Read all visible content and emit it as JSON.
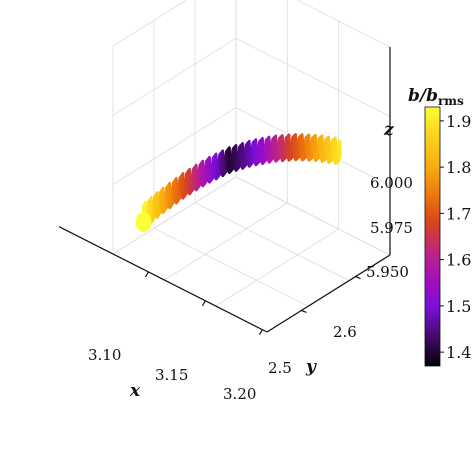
{
  "chart_data": {
    "type": "line",
    "projection": "3d",
    "title": "",
    "xlabel": "x",
    "ylabel": "y",
    "zlabel": "z",
    "x_ticks": [
      "3.10",
      "3.15",
      "3.20"
    ],
    "y_ticks": [
      "2.5",
      "2.6"
    ],
    "z_ticks": [
      "5.950",
      "5.975",
      "6.000"
    ],
    "xlim": [
      3.07,
      3.2
    ],
    "ylim": [
      2.43,
      2.67
    ],
    "zlim": [
      5.925,
      6.025
    ],
    "grid": true,
    "colorbar": {
      "label_main": "b/b",
      "label_sub": "rms",
      "ticks": [
        "1.4",
        "1.5",
        "1.6",
        "1.7",
        "1.8",
        "1.9"
      ],
      "range": [
        1.37,
        1.93
      ],
      "colormap": [
        "#000004",
        "#420a68",
        "#7a0fd6",
        "#a20fbe",
        "#c0257e",
        "#d8461a",
        "#ef7a0d",
        "#f9b00f",
        "#fcd21c",
        "#fcff35"
      ]
    },
    "series": [
      {
        "center_path": [
          {
            "x": 3.085,
            "y": 2.455,
            "z": 5.955,
            "b": 1.92
          },
          {
            "x": 3.095,
            "y": 2.47,
            "z": 5.968,
            "b": 1.8
          },
          {
            "x": 3.105,
            "y": 2.49,
            "z": 5.98,
            "b": 1.68
          },
          {
            "x": 3.115,
            "y": 2.51,
            "z": 5.99,
            "b": 1.55
          },
          {
            "x": 3.125,
            "y": 2.53,
            "z": 5.998,
            "b": 1.4
          },
          {
            "x": 3.135,
            "y": 2.55,
            "z": 6.003,
            "b": 1.48
          },
          {
            "x": 3.145,
            "y": 2.57,
            "z": 6.006,
            "b": 1.6
          },
          {
            "x": 3.155,
            "y": 2.59,
            "z": 6.007,
            "b": 1.7
          },
          {
            "x": 3.165,
            "y": 2.61,
            "z": 6.006,
            "b": 1.8
          },
          {
            "x": 3.175,
            "y": 2.63,
            "z": 6.003,
            "b": 1.9
          }
        ],
        "helix_radius": 0.004,
        "turns": 30,
        "strands": 7,
        "strand_spread": 0.006
      }
    ]
  }
}
